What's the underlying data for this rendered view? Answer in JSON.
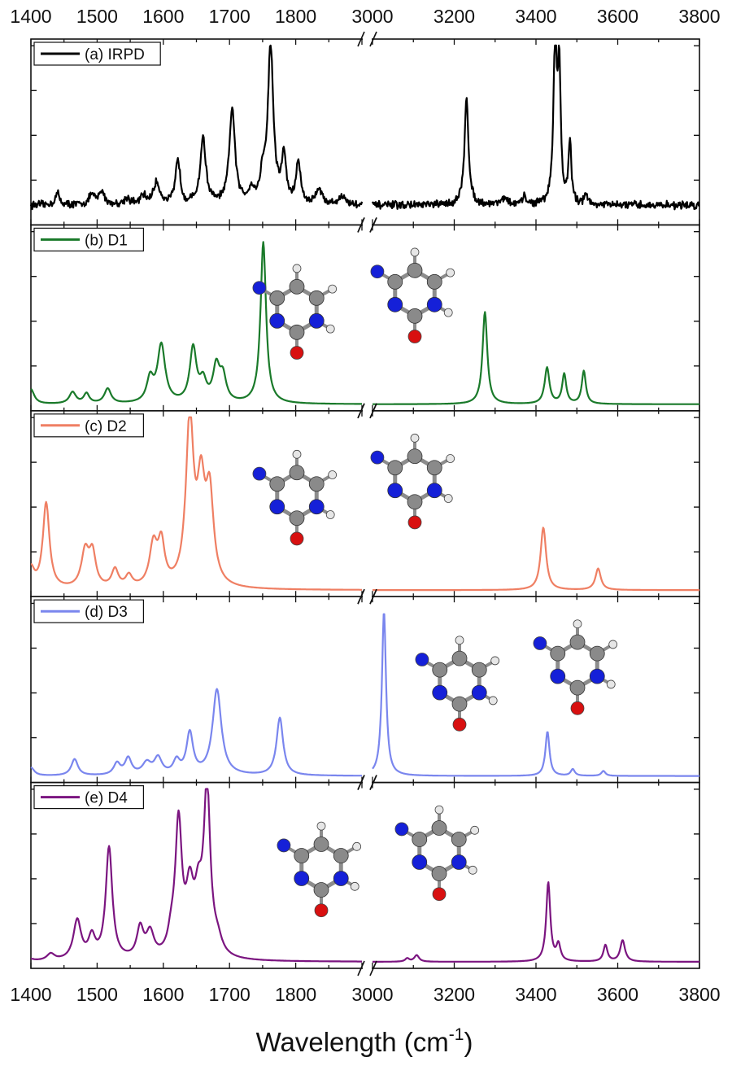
{
  "chart_data": {
    "type": "line",
    "xlabel": "Wavelength (cm",
    "xlabel_superscript": "-1",
    "xlabel_suffix": ")",
    "axis_break": true,
    "x_segments": [
      {
        "range": [
          1400,
          1900
        ],
        "ticks": [
          1400,
          1500,
          1600,
          1700,
          1800
        ],
        "labels": [
          "1400",
          "1500",
          "1600",
          "1700",
          "1800"
        ]
      },
      {
        "range": [
          3000,
          3800
        ],
        "ticks": [
          3000,
          3200,
          3400,
          3600,
          3800
        ],
        "labels": [
          "3000",
          "3200",
          "3400",
          "3600",
          "3800"
        ]
      }
    ],
    "x_labels_top_and_bottom": true,
    "panels": [
      {
        "name": "(a) IRPD",
        "color": "#000000",
        "noise": true,
        "baseline": 0.08,
        "molecules": false,
        "peaks": [
          {
            "x": 1440,
            "h": 0.07,
            "w": 4
          },
          {
            "x": 1492,
            "h": 0.06,
            "w": 5
          },
          {
            "x": 1507,
            "h": 0.08,
            "w": 5
          },
          {
            "x": 1545,
            "h": 0.04,
            "w": 5
          },
          {
            "x": 1570,
            "h": 0.05,
            "w": 5
          },
          {
            "x": 1590,
            "h": 0.13,
            "w": 6
          },
          {
            "x": 1622,
            "h": 0.28,
            "w": 4
          },
          {
            "x": 1660,
            "h": 0.4,
            "w": 5
          },
          {
            "x": 1704,
            "h": 0.58,
            "w": 5
          },
          {
            "x": 1733,
            "h": 0.08,
            "w": 5
          },
          {
            "x": 1762,
            "h": 0.96,
            "w": 5
          },
          {
            "x": 1750,
            "h": 0.15,
            "w": 4
          },
          {
            "x": 1782,
            "h": 0.28,
            "w": 4
          },
          {
            "x": 1804,
            "h": 0.25,
            "w": 4
          },
          {
            "x": 1835,
            "h": 0.1,
            "w": 5
          },
          {
            "x": 1870,
            "h": 0.05,
            "w": 6
          },
          {
            "x": 3230,
            "h": 0.64,
            "w": 6
          },
          {
            "x": 3320,
            "h": 0.04,
            "w": 10
          },
          {
            "x": 3372,
            "h": 0.05,
            "w": 5
          },
          {
            "x": 3447,
            "h": 1.0,
            "w": 5
          },
          {
            "x": 3457,
            "h": 0.78,
            "w": 4
          },
          {
            "x": 3483,
            "h": 0.38,
            "w": 4
          },
          {
            "x": 3522,
            "h": 0.08,
            "w": 4
          }
        ]
      },
      {
        "name": "(b) D1",
        "color": "#1a7a2a",
        "noise": false,
        "baseline": 0.0,
        "molecules": true,
        "peaks": [
          {
            "x": 1400,
            "h": 0.09,
            "w": 6
          },
          {
            "x": 1463,
            "h": 0.07,
            "w": 6
          },
          {
            "x": 1484,
            "h": 0.06,
            "w": 5
          },
          {
            "x": 1516,
            "h": 0.09,
            "w": 6
          },
          {
            "x": 1580,
            "h": 0.14,
            "w": 6
          },
          {
            "x": 1597,
            "h": 0.35,
            "w": 7
          },
          {
            "x": 1645,
            "h": 0.33,
            "w": 6
          },
          {
            "x": 1660,
            "h": 0.12,
            "w": 6
          },
          {
            "x": 1680,
            "h": 0.21,
            "w": 6
          },
          {
            "x": 1690,
            "h": 0.15,
            "w": 6
          },
          {
            "x": 1751,
            "h": 0.98,
            "w": 5
          },
          {
            "x": 3275,
            "h": 0.56,
            "w": 7
          },
          {
            "x": 3427,
            "h": 0.22,
            "w": 7
          },
          {
            "x": 3469,
            "h": 0.18,
            "w": 6
          },
          {
            "x": 3517,
            "h": 0.2,
            "w": 6
          }
        ]
      },
      {
        "name": "(c) D2",
        "color": "#ef7f63",
        "noise": false,
        "baseline": 0.0,
        "molecules": true,
        "peaks": [
          {
            "x": 1400,
            "h": 0.12,
            "w": 6
          },
          {
            "x": 1423,
            "h": 0.52,
            "w": 6
          },
          {
            "x": 1482,
            "h": 0.22,
            "w": 7
          },
          {
            "x": 1493,
            "h": 0.2,
            "w": 6
          },
          {
            "x": 1527,
            "h": 0.11,
            "w": 6
          },
          {
            "x": 1548,
            "h": 0.07,
            "w": 6
          },
          {
            "x": 1585,
            "h": 0.25,
            "w": 7
          },
          {
            "x": 1597,
            "h": 0.25,
            "w": 6
          },
          {
            "x": 1640,
            "h": 1.0,
            "w": 7
          },
          {
            "x": 1657,
            "h": 0.55,
            "w": 7
          },
          {
            "x": 1670,
            "h": 0.53,
            "w": 7
          },
          {
            "x": 3418,
            "h": 0.38,
            "w": 8
          },
          {
            "x": 3552,
            "h": 0.13,
            "w": 8
          }
        ]
      },
      {
        "name": "(d) D3",
        "color": "#7a86ee",
        "noise": false,
        "baseline": 0.0,
        "molecules": true,
        "peaks": [
          {
            "x": 1400,
            "h": 0.05,
            "w": 6
          },
          {
            "x": 1466,
            "h": 0.1,
            "w": 6
          },
          {
            "x": 1530,
            "h": 0.07,
            "w": 6
          },
          {
            "x": 1547,
            "h": 0.1,
            "w": 6
          },
          {
            "x": 1575,
            "h": 0.07,
            "w": 8
          },
          {
            "x": 1592,
            "h": 0.1,
            "w": 7
          },
          {
            "x": 1620,
            "h": 0.08,
            "w": 6
          },
          {
            "x": 1640,
            "h": 0.25,
            "w": 6
          },
          {
            "x": 1681,
            "h": 0.52,
            "w": 8
          },
          {
            "x": 1776,
            "h": 0.35,
            "w": 6
          },
          {
            "x": 3028,
            "h": 1.0,
            "w": 6
          },
          {
            "x": 3428,
            "h": 0.27,
            "w": 6
          },
          {
            "x": 3490,
            "h": 0.04,
            "w": 6
          },
          {
            "x": 3565,
            "h": 0.03,
            "w": 6
          }
        ]
      },
      {
        "name": "(e) D4",
        "color": "#7b1580",
        "noise": false,
        "baseline": 0.0,
        "molecules": true,
        "peaks": [
          {
            "x": 1400,
            "h": 0.01,
            "w": 6
          },
          {
            "x": 1430,
            "h": 0.04,
            "w": 7
          },
          {
            "x": 1470,
            "h": 0.24,
            "w": 7
          },
          {
            "x": 1492,
            "h": 0.13,
            "w": 6
          },
          {
            "x": 1518,
            "h": 0.68,
            "w": 6
          },
          {
            "x": 1565,
            "h": 0.18,
            "w": 6
          },
          {
            "x": 1580,
            "h": 0.15,
            "w": 7
          },
          {
            "x": 1612,
            "h": 0.1,
            "w": 6
          },
          {
            "x": 1623,
            "h": 0.8,
            "w": 6
          },
          {
            "x": 1640,
            "h": 0.36,
            "w": 7
          },
          {
            "x": 1653,
            "h": 0.3,
            "w": 7
          },
          {
            "x": 1666,
            "h": 1.0,
            "w": 6
          },
          {
            "x": 1682,
            "h": 0.08,
            "w": 8
          },
          {
            "x": 3085,
            "h": 0.02,
            "w": 6
          },
          {
            "x": 3108,
            "h": 0.04,
            "w": 7
          },
          {
            "x": 3430,
            "h": 0.48,
            "w": 6
          },
          {
            "x": 3455,
            "h": 0.1,
            "w": 6
          },
          {
            "x": 3570,
            "h": 0.1,
            "w": 6
          },
          {
            "x": 3612,
            "h": 0.13,
            "w": 7
          }
        ]
      }
    ]
  }
}
